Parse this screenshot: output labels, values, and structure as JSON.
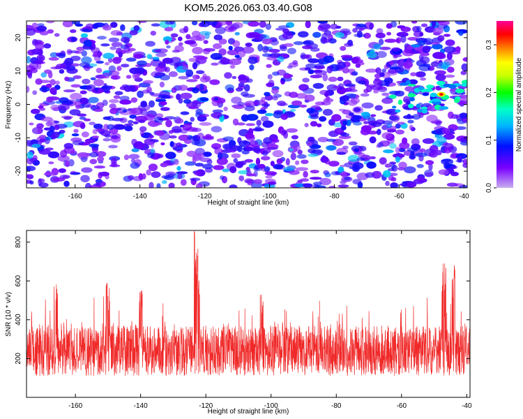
{
  "title": "KOM5.2026.063.03.40.G08",
  "chart_data": [
    {
      "type": "heatmap",
      "xlabel": "Height of straight line (km)",
      "ylabel": "Frequency (Hz)",
      "xlim": [
        -175,
        -39
      ],
      "ylim": [
        -25,
        25
      ],
      "xticks": [
        -160,
        -140,
        -120,
        -100,
        -80,
        -60,
        -40
      ],
      "yticks": [
        -20,
        -10,
        0,
        10,
        20
      ],
      "colorbar": {
        "label": "Normalized spectral amplitude",
        "range": [
          0,
          0.35
        ],
        "ticks": [
          "0.0",
          "0.1",
          "0.2",
          "0.3"
        ],
        "colormap": [
          "#c8aef0",
          "#7a00ff",
          "#0010ff",
          "#00b4ff",
          "#00ffc8",
          "#00ff00",
          "#c8ff00",
          "#ffff00",
          "#ff8c00",
          "#ff0000",
          "#ff0096"
        ]
      },
      "peak": {
        "x": -47,
        "y": 3,
        "value": 0.35
      },
      "noise_level": 0.05
    },
    {
      "type": "line",
      "xlabel": "Height of straight line (km)",
      "ylabel": "SNR (10 * v/v)",
      "xlim": [
        -175,
        -39
      ],
      "ylim": [
        0,
        860
      ],
      "xticks": [
        -160,
        -140,
        -120,
        -100,
        -80,
        -60,
        -40
      ],
      "yticks": [
        200,
        400,
        600,
        800
      ],
      "series_color": "#f02828",
      "baseline": 240,
      "peaks": [
        {
          "x": -123,
          "value": 860
        },
        {
          "x": -122.5,
          "value": 680
        },
        {
          "x": -47,
          "value": 705
        },
        {
          "x": -44,
          "value": 680
        },
        {
          "x": -166,
          "value": 585
        },
        {
          "x": -150,
          "value": 590
        },
        {
          "x": -140,
          "value": 560
        },
        {
          "x": -103,
          "value": 560
        }
      ]
    }
  ]
}
